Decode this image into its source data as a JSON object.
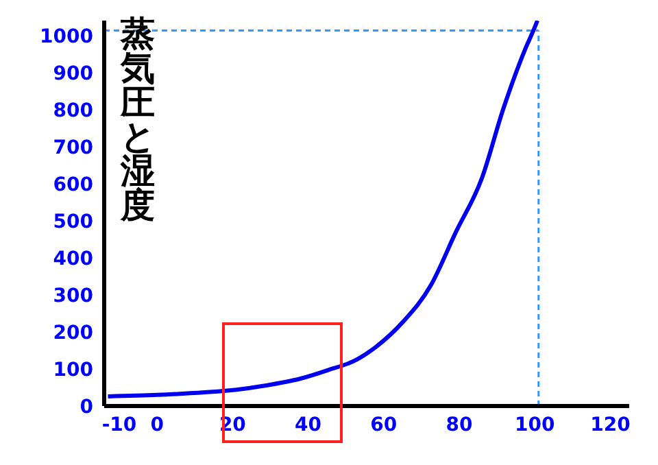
{
  "chart_data": {
    "type": "line",
    "title": "蒸気圧と湿度",
    "x": [
      -13,
      0,
      12.6,
      21,
      28.6,
      38,
      45,
      53,
      58,
      65,
      72.5,
      79,
      86,
      91.6,
      97.3,
      100,
      100.7
    ],
    "series": [
      {
        "color": "#0000ee",
        "values": [
          26,
          30,
          37,
          44,
          55,
          74,
          96,
          126,
          160,
          226,
          326,
          467,
          615,
          800,
          959,
          1022,
          1040
        ]
      }
    ],
    "xlim": [
      -14,
      125
    ],
    "xticks": [
      -10,
      0,
      20,
      40,
      60,
      80,
      100,
      120
    ],
    "ylim": [
      0,
      1040
    ],
    "yticks": [
      0,
      100,
      200,
      300,
      400,
      500,
      600,
      700,
      800,
      900,
      1000
    ],
    "ref_lines": [
      {
        "axis": "y",
        "value": 1013,
        "color": "#3399ff",
        "line_style": "dashed"
      },
      {
        "axis": "x",
        "value": 101,
        "color": "#3399ff",
        "line_style": "dashed"
      }
    ],
    "grid": false,
    "legend": false,
    "marker": "none",
    "line_style": "solid"
  }
}
